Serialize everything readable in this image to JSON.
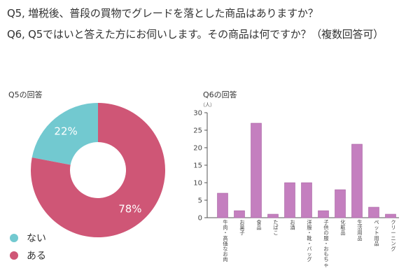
{
  "questions": {
    "q5": "Q5, 増税後、普段の買物でグレードを落とした商品はありますか？",
    "q6": "Q6, Q5ではいと答えた方にお伺いします。その商品は何ですか？（複数回答可）"
  },
  "colors": {
    "nai": "#72c9d0",
    "aru": "#cf5676",
    "bar": "#c47fbf",
    "bar_stroke": "#a863a3",
    "axis": "#555555"
  },
  "chart_data": [
    {
      "type": "pie",
      "title": "Q5の回答",
      "slices": [
        {
          "label": "ない",
          "value": 22,
          "display": "22%"
        },
        {
          "label": "ある",
          "value": 78,
          "display": "78%"
        }
      ]
    },
    {
      "type": "bar",
      "title": "Q6の回答",
      "ylabel": "（人）",
      "ylim": [
        0,
        30
      ],
      "yticks": [
        0,
        5,
        10,
        15,
        20,
        25,
        30
      ],
      "categories": [
        "牛肉・高価なお肉",
        "お菓子",
        "食品",
        "たばこ",
        "お酒",
        "洋服・靴・バッグ",
        "子供の服・おもちゃ",
        "化粧品",
        "生活用品",
        "ペット用品",
        "クリーニング"
      ],
      "values": [
        7,
        2,
        27,
        1,
        10,
        10,
        2,
        8,
        21,
        3,
        1
      ]
    }
  ]
}
